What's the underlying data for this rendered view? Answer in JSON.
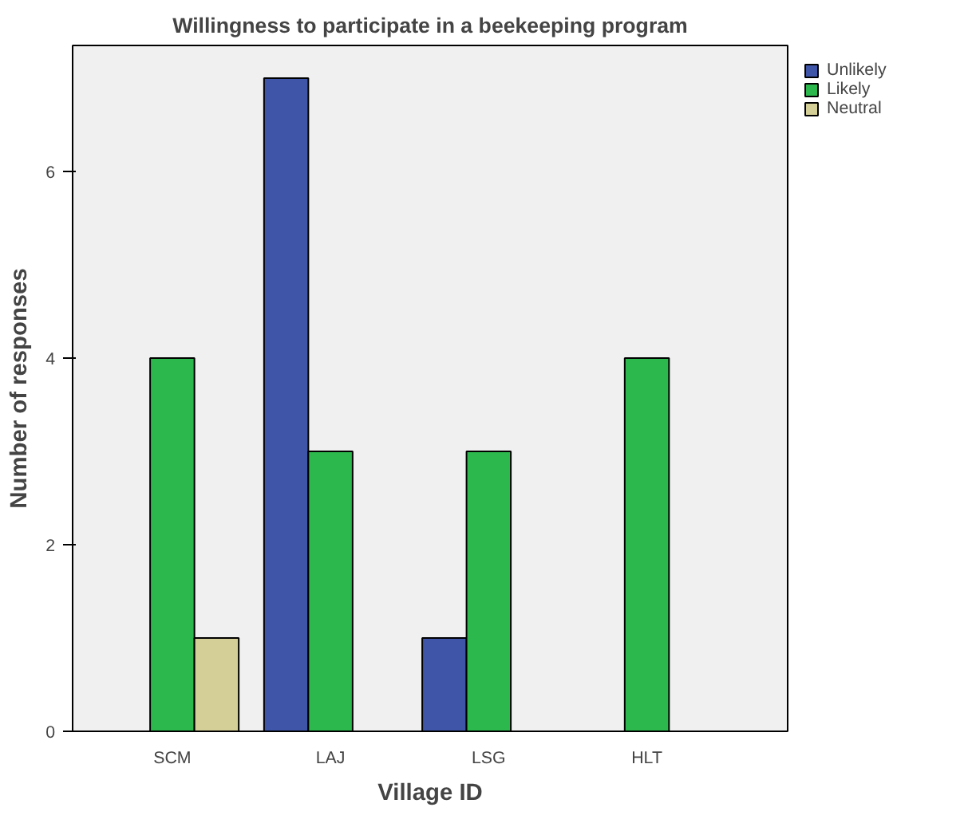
{
  "chart_data": {
    "type": "bar",
    "title": "Willingness to participate in a beekeeping program",
    "xlabel": "Village ID",
    "ylabel": "Number of responses",
    "categories": [
      "SCM",
      "LAJ",
      "LSG",
      "HLT"
    ],
    "series": [
      {
        "name": "Unlikely",
        "color": "#3f56a8",
        "values": [
          null,
          7,
          1,
          null
        ]
      },
      {
        "name": "Likely",
        "color": "#2db84d",
        "values": [
          4,
          3,
          3,
          4
        ]
      },
      {
        "name": "Neutral",
        "color": "#d4cf96",
        "values": [
          1,
          null,
          null,
          null
        ]
      }
    ],
    "ylim": [
      0,
      7.35
    ],
    "yticks": [
      0,
      2,
      4,
      6
    ],
    "grid": false,
    "legend": "top right"
  }
}
